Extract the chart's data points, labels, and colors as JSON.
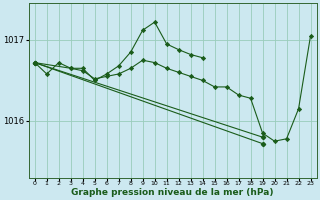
{
  "xlabel": "Graphe pression niveau de la mer (hPa)",
  "bg_color": "#cce8f0",
  "grid_color": "#99ccbb",
  "line_color": "#1a5c1a",
  "x_ticks": [
    0,
    1,
    2,
    3,
    4,
    5,
    6,
    7,
    8,
    9,
    10,
    11,
    12,
    13,
    14,
    15,
    16,
    17,
    18,
    19,
    20,
    21,
    22,
    23
  ],
  "ylim": [
    1015.3,
    1017.45
  ],
  "yticks": [
    1016,
    1017
  ],
  "series1": [
    1016.72,
    1016.58,
    1016.72,
    1016.65,
    1016.62,
    1016.52,
    1016.55,
    1016.58,
    1016.65,
    1016.75,
    1016.72,
    1016.65,
    1016.6,
    1016.55,
    1016.5,
    1016.42,
    1016.42,
    1016.32,
    1016.28,
    1015.85,
    1015.75,
    1015.78,
    1016.15,
    1017.05
  ],
  "series2_start": 0,
  "series2": [
    1016.72,
    null,
    null,
    null,
    null,
    null,
    null,
    null,
    null,
    null,
    null,
    null,
    null,
    null,
    null,
    null,
    null,
    null,
    null,
    1015.8,
    null,
    null,
    null,
    null
  ],
  "line2_x": [
    0,
    19
  ],
  "line2_y": [
    1016.72,
    1015.8
  ],
  "line3_x": [
    0,
    19
  ],
  "line3_y": [
    1016.72,
    1015.72
  ],
  "series3": [
    1016.72,
    null,
    null,
    1016.65,
    1016.65,
    1016.5,
    1016.58,
    1016.68,
    1016.85,
    1017.12,
    1017.22,
    1016.95,
    1016.88,
    1016.82,
    1016.78,
    null,
    null,
    null,
    null,
    null,
    null,
    null,
    null,
    null
  ]
}
